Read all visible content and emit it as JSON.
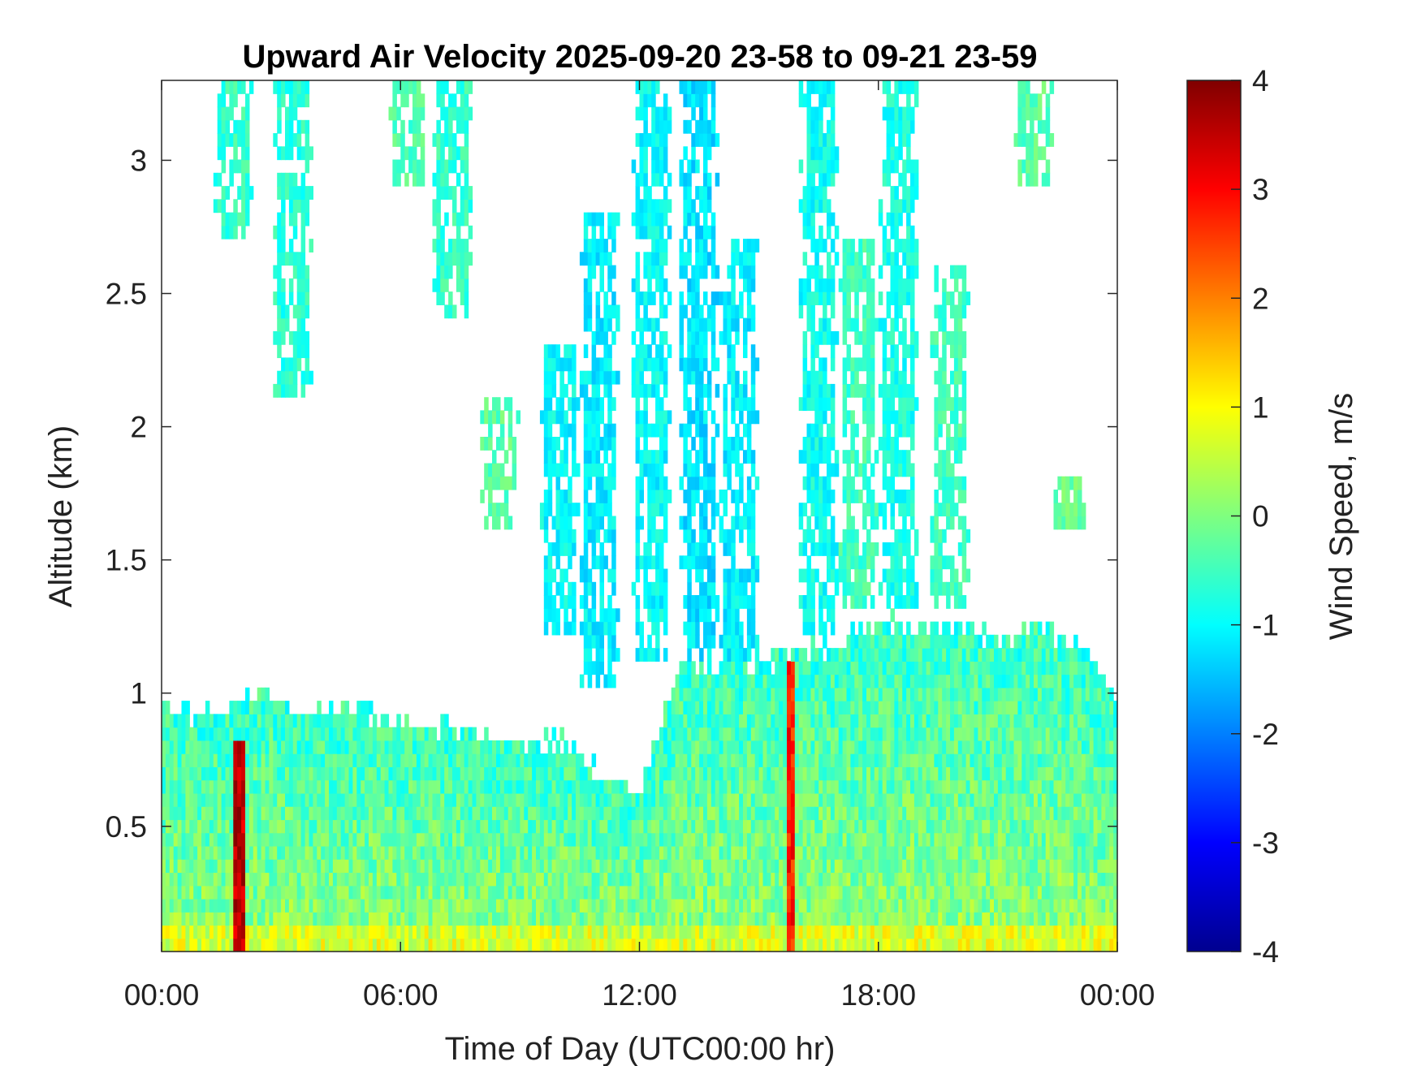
{
  "chart_data": {
    "type": "heatmap",
    "title": "Upward Air Velocity 2025-09-20 23-58 to 09-21 23-59",
    "xlabel": "Time of Day (UTC00:00 hr)",
    "ylabel": "Altitude (km)",
    "colorbar_label": "Wind Speed, m/s",
    "colormap": "jet",
    "x_ticks": [
      "00:00",
      "06:00",
      "12:00",
      "18:00",
      "00:00"
    ],
    "x_tick_hours": [
      0,
      6,
      12,
      18,
      24
    ],
    "xlim_hours": [
      0,
      24
    ],
    "y_ticks": [
      0.5,
      1,
      1.5,
      2,
      2.5,
      3
    ],
    "y_tick_labels": [
      "0.5",
      "1",
      "1.5",
      "2",
      "2.5",
      "3"
    ],
    "ylim_km": [
      0.03,
      3.3
    ],
    "colorbar_ticks": [
      4,
      3,
      2,
      1,
      0,
      -1,
      -2,
      -3,
      -4
    ],
    "colorbar_tick_labels": [
      "4",
      "3",
      "2",
      "1",
      "0",
      "-1",
      "-2",
      "-3",
      "-4"
    ],
    "clim": [
      -4,
      4
    ],
    "boundary_layer_top_km": [
      {
        "hour": 0,
        "top": 0.92
      },
      {
        "hour": 1.5,
        "top": 0.93
      },
      {
        "hour": 2,
        "top": 1.0
      },
      {
        "hour": 3,
        "top": 0.98
      },
      {
        "hour": 4,
        "top": 0.92
      },
      {
        "hour": 5,
        "top": 0.95
      },
      {
        "hour": 6,
        "top": 0.88
      },
      {
        "hour": 7,
        "top": 0.87
      },
      {
        "hour": 8,
        "top": 0.85
      },
      {
        "hour": 9,
        "top": 0.82
      },
      {
        "hour": 10,
        "top": 0.83
      },
      {
        "hour": 11,
        "top": 0.7
      },
      {
        "hour": 12,
        "top": 0.65
      },
      {
        "hour": 13,
        "top": 1.1
      },
      {
        "hour": 14,
        "top": 1.1
      },
      {
        "hour": 15,
        "top": 1.1
      },
      {
        "hour": 16,
        "top": 1.15
      },
      {
        "hour": 17,
        "top": 1.2
      },
      {
        "hour": 18,
        "top": 1.27
      },
      {
        "hour": 19,
        "top": 1.25
      },
      {
        "hour": 20,
        "top": 1.27
      },
      {
        "hour": 21,
        "top": 1.2
      },
      {
        "hour": 22,
        "top": 1.25
      },
      {
        "hour": 23,
        "top": 1.18
      },
      {
        "hour": 24,
        "top": 1.0
      }
    ],
    "plumes": [
      {
        "hour": 1.8,
        "bottom": 2.7,
        "top": 3.3,
        "value": -0.6
      },
      {
        "hour": 3.3,
        "bottom": 2.1,
        "top": 3.3,
        "value": -0.7
      },
      {
        "hour": 6.2,
        "bottom": 2.9,
        "top": 3.3,
        "value": -0.4
      },
      {
        "hour": 7.3,
        "bottom": 2.4,
        "top": 3.3,
        "value": -0.6
      },
      {
        "hour": 8.5,
        "bottom": 1.6,
        "top": 2.1,
        "value": -0.3
      },
      {
        "hour": 10.0,
        "bottom": 1.2,
        "top": 2.3,
        "value": -1.0
      },
      {
        "hour": 11.0,
        "bottom": 1.0,
        "top": 2.8,
        "value": -1.1
      },
      {
        "hour": 12.3,
        "bottom": 1.1,
        "top": 3.3,
        "value": -1.0
      },
      {
        "hour": 13.5,
        "bottom": 1.1,
        "top": 3.3,
        "value": -1.2
      },
      {
        "hour": 14.5,
        "bottom": 1.1,
        "top": 2.7,
        "value": -1.1
      },
      {
        "hour": 16.5,
        "bottom": 1.2,
        "top": 3.3,
        "value": -0.9
      },
      {
        "hour": 17.5,
        "bottom": 1.3,
        "top": 2.7,
        "value": -0.5
      },
      {
        "hour": 18.5,
        "bottom": 1.3,
        "top": 3.3,
        "value": -0.8
      },
      {
        "hour": 19.8,
        "bottom": 1.3,
        "top": 2.6,
        "value": -0.5
      },
      {
        "hour": 21.9,
        "bottom": 2.9,
        "top": 3.3,
        "value": -0.3
      },
      {
        "hour": 22.8,
        "bottom": 1.62,
        "top": 1.82,
        "value": -0.2
      }
    ],
    "updraft_columns": [
      {
        "hour": 15.8,
        "bottom": 0.05,
        "top": 1.1,
        "value": 2.8
      },
      {
        "hour": 1.95,
        "bottom": 0.05,
        "top": 0.8,
        "value": 3.5
      }
    ]
  }
}
